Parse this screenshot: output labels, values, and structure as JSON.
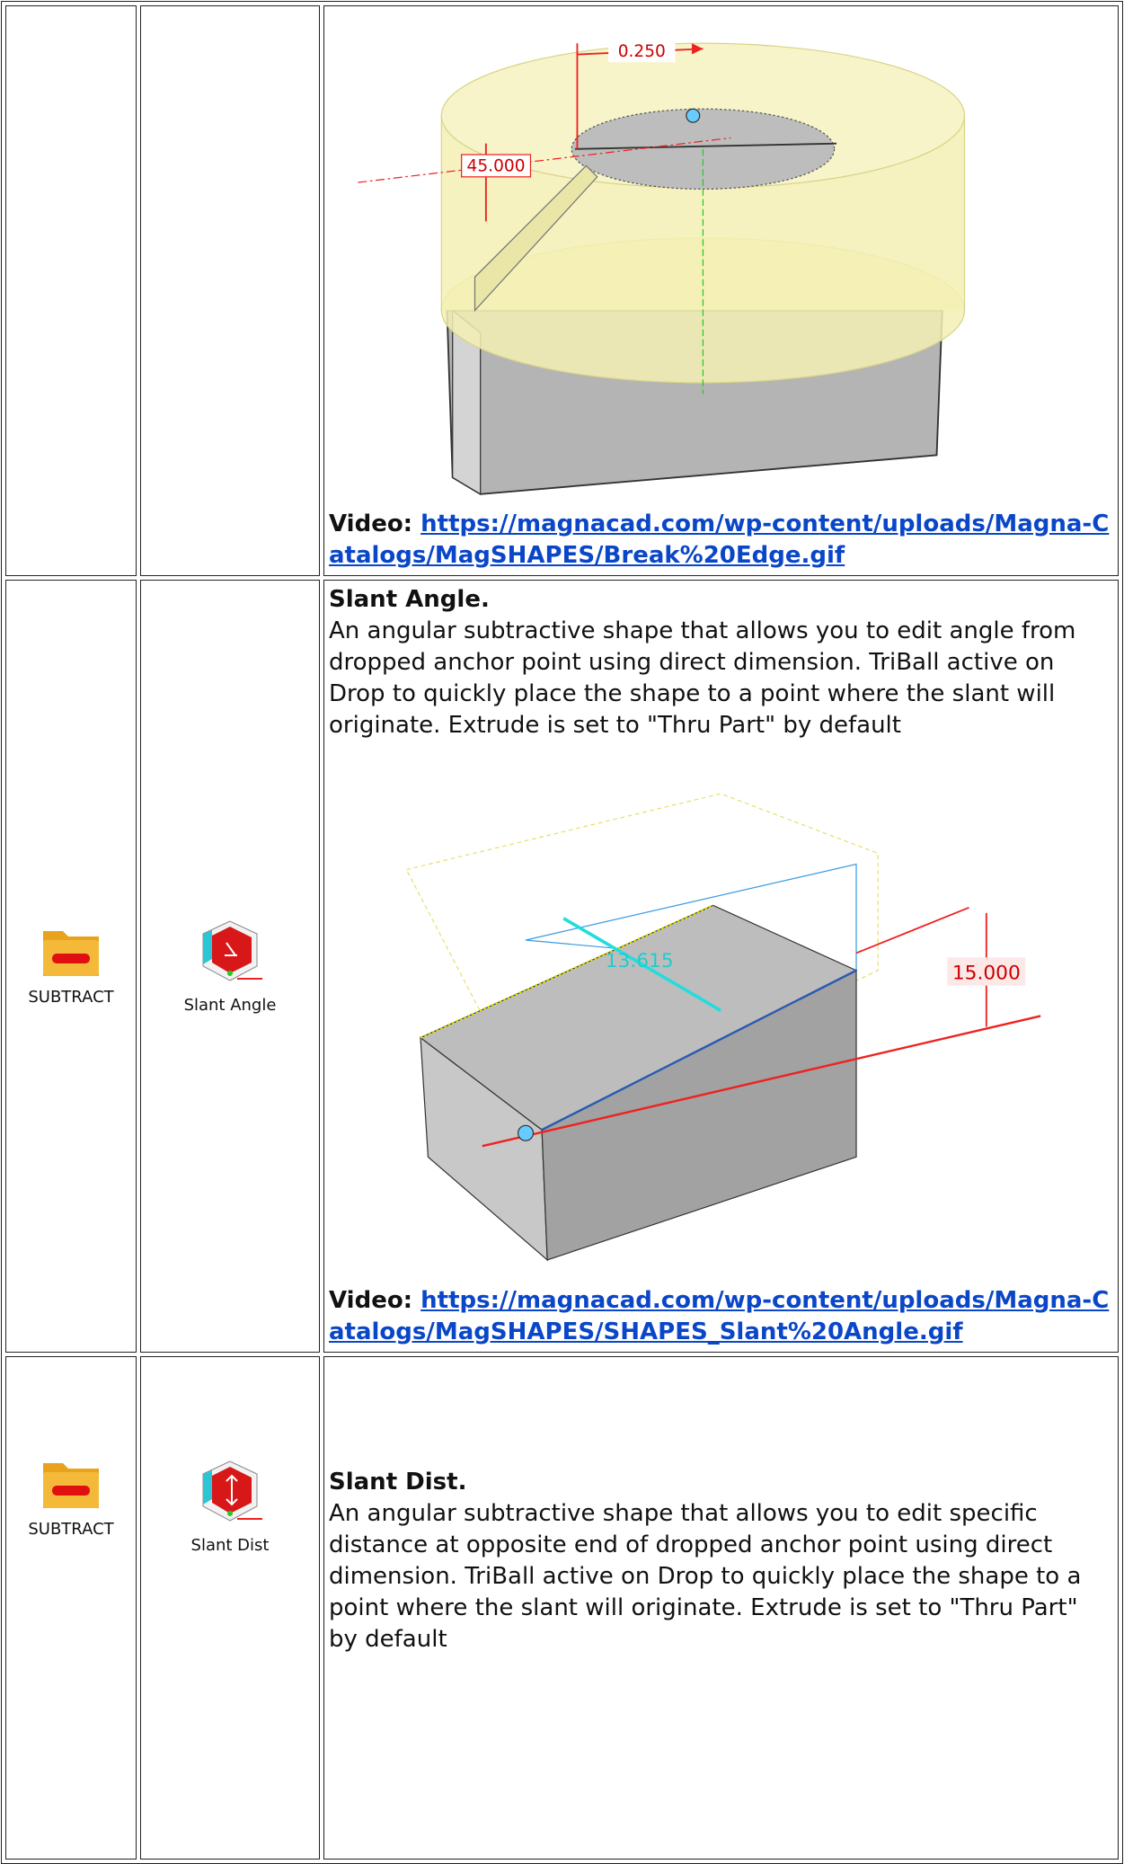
{
  "table": {
    "rows": [
      {
        "figure_labels": [
          "0.250",
          "45.000"
        ],
        "video_label": "Video:",
        "video_url": "https://magnacad.com/wp-content/uploads/Magna-Catalogs/MagSHAPES/Break%20Edge.gif"
      },
      {
        "category": "SUBTRACT",
        "tool": "Slant Angle",
        "title": "Slant Angle.",
        "description": "An angular subtractive shape that allows you to edit angle from dropped anchor point using direct dimension. TriBall active on Drop to quickly place the shape to a point where the slant will originate. Extrude is set to \"Thru Part\" by default",
        "figure_labels": [
          "13.615",
          "15.000"
        ],
        "video_label": "Video:",
        "video_url": "https://magnacad.com/wp-content/uploads/Magna-Catalogs/MagSHAPES/SHAPES_Slant%20Angle.gif"
      },
      {
        "category": "SUBTRACT",
        "tool": "Slant Dist",
        "title": "Slant Dist.",
        "description": "An angular subtractive shape that allows you to edit specific distance at opposite end of dropped anchor point using direct dimension. TriBall active on Drop to quickly place the shape to a point where the slant will originate. Extrude is set to \"Thru Part\" by default"
      }
    ]
  }
}
